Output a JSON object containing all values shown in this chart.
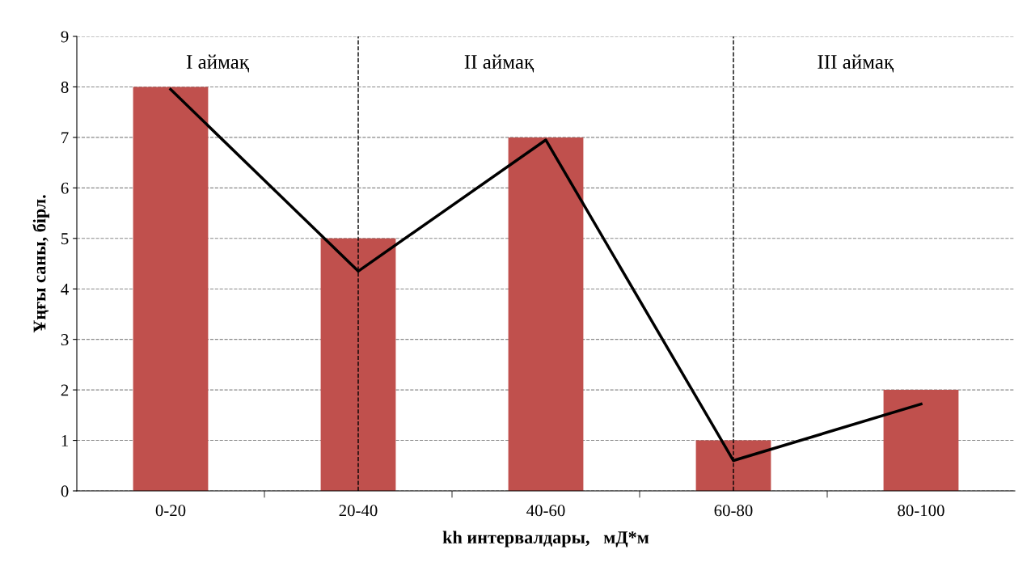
{
  "chart_data": {
    "type": "bar",
    "xlabel": "kh интервалдары,   мД*м",
    "ylabel": "Ұңғы саны, бірл.",
    "categories": [
      "0-20",
      "20-40",
      "40-60",
      "60-80",
      "80-100"
    ],
    "series": [
      {
        "color": "#c0504d",
        "values": [
          8,
          5,
          7,
          1,
          2
        ]
      },
      {
        "type": "line",
        "color": "#000000",
        "values": [
          7.95,
          4.35,
          6.95,
          0.6,
          1.72
        ]
      }
    ],
    "ylim": [
      0,
      9
    ],
    "yticks": [
      0,
      1,
      2,
      3,
      4,
      5,
      6,
      7,
      8,
      9
    ],
    "grid": "y",
    "ref_lines": [
      {
        "axis": "x",
        "value": "20-40",
        "color": "#000000",
        "line_style": "dashed"
      },
      {
        "axis": "x",
        "value": "60-80",
        "color": "#000000",
        "line_style": "dashed"
      }
    ],
    "annotations": [
      "I аймақ",
      "II аймақ",
      "III аймақ"
    ]
  }
}
